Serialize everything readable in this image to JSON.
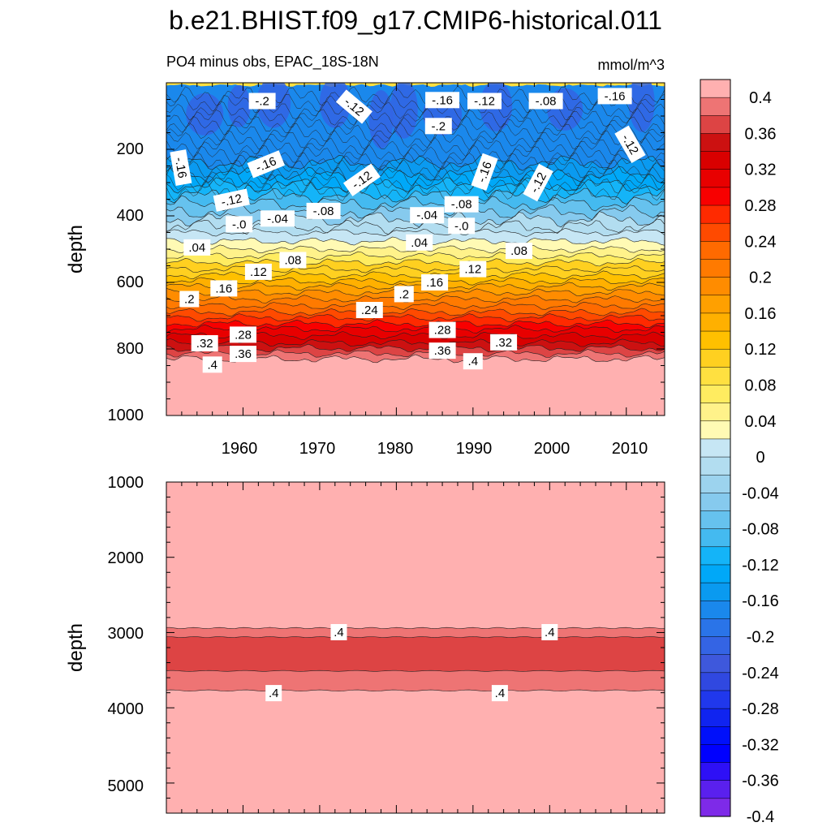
{
  "chart_data": {
    "type": "heatmap",
    "title": "b.e21.BHIST.f09_g17.CMIP6-historical.011",
    "subtitle": "PO4 minus obs, EPAC_18S-18N",
    "units": "mmol/m^3",
    "top_panel": {
      "ylabel": "depth",
      "ylim": [
        0,
        1000
      ],
      "xlim": [
        1950,
        2015
      ],
      "yticks": [
        200,
        400,
        600,
        800,
        1000
      ],
      "ytick_labels": [
        "200",
        "400",
        "600",
        "800",
        "1000"
      ],
      "xticks": [
        1960,
        1970,
        1980,
        1990,
        2000,
        2010
      ],
      "xtick_labels": [
        "1960",
        "1970",
        "1980",
        "1990",
        "2000",
        "2010"
      ],
      "contour_labels": [
        {
          "text": "-.2",
          "year": 1962.5,
          "depth": 55
        },
        {
          "text": "-.12",
          "year": 1974.5,
          "depth": 72
        },
        {
          "text": "-.16",
          "year": 1986.0,
          "depth": 52
        },
        {
          "text": "-.12",
          "year": 1991.5,
          "depth": 55
        },
        {
          "text": "-.08",
          "year": 1999.5,
          "depth": 55
        },
        {
          "text": "-.16",
          "year": 2008.5,
          "depth": 40
        },
        {
          "text": "-.2",
          "year": 1985.5,
          "depth": 130
        },
        {
          "text": "-.12",
          "year": 2010.5,
          "depth": 185
        },
        {
          "text": "-.16",
          "year": 1951.9,
          "depth": 255
        },
        {
          "text": "-.16",
          "year": 1963.0,
          "depth": 245
        },
        {
          "text": "-.12",
          "year": 1975.5,
          "depth": 292
        },
        {
          "text": "-.16",
          "year": 1991.5,
          "depth": 268
        },
        {
          "text": "-.12",
          "year": 1998.5,
          "depth": 300
        },
        {
          "text": "-.12",
          "year": 1958.5,
          "depth": 353
        },
        {
          "text": "-.0",
          "year": 1959.5,
          "depth": 425
        },
        {
          "text": "-.04",
          "year": 1964.5,
          "depth": 408
        },
        {
          "text": "-.08",
          "year": 1970.5,
          "depth": 385
        },
        {
          "text": "-.04",
          "year": 1984.0,
          "depth": 398
        },
        {
          "text": "-.08",
          "year": 1988.5,
          "depth": 365
        },
        {
          "text": "-.0",
          "year": 1988.5,
          "depth": 430
        },
        {
          "text": ".04",
          "year": 1954.0,
          "depth": 495
        },
        {
          "text": ".04",
          "year": 1983.0,
          "depth": 480
        },
        {
          "text": ".08",
          "year": 1966.5,
          "depth": 533
        },
        {
          "text": ".08",
          "year": 1996.0,
          "depth": 505
        },
        {
          "text": ".12",
          "year": 1962.0,
          "depth": 568
        },
        {
          "text": ".12",
          "year": 1990.0,
          "depth": 560
        },
        {
          "text": ".16",
          "year": 1957.5,
          "depth": 618
        },
        {
          "text": ".16",
          "year": 1985.0,
          "depth": 600
        },
        {
          "text": ".2",
          "year": 1953.0,
          "depth": 650
        },
        {
          "text": ".2",
          "year": 1981.0,
          "depth": 635
        },
        {
          "text": ".24",
          "year": 1976.5,
          "depth": 683
        },
        {
          "text": ".28",
          "year": 1960.0,
          "depth": 757
        },
        {
          "text": ".28",
          "year": 1986.0,
          "depth": 743
        },
        {
          "text": ".32",
          "year": 1955.0,
          "depth": 783
        },
        {
          "text": ".32",
          "year": 1994.0,
          "depth": 780
        },
        {
          "text": ".36",
          "year": 1960.0,
          "depth": 815
        },
        {
          "text": ".36",
          "year": 1986.0,
          "depth": 805
        },
        {
          "text": ".4",
          "year": 1956.0,
          "depth": 847
        },
        {
          "text": ".4",
          "year": 1990.0,
          "depth": 837
        }
      ]
    },
    "bottom_panel": {
      "ylabel": "depth",
      "ylim": [
        1000,
        5400
      ],
      "xlim": [
        1950,
        2015
      ],
      "yticks": [
        1000,
        2000,
        3000,
        4000,
        5000
      ],
      "ytick_labels": [
        "1000",
        "2000",
        "3000",
        "4000",
        "5000"
      ],
      "contour_labels": [
        {
          "text": ".4",
          "year": 1972.5,
          "depth": 2995
        },
        {
          "text": ".4",
          "year": 2000.0,
          "depth": 2995
        },
        {
          "text": ".4",
          "year": 1964.0,
          "depth": 3805
        },
        {
          "text": ".4",
          "year": 1993.5,
          "depth": 3805
        }
      ]
    },
    "colorbar": {
      "labels": [
        "0.4",
        "0.36",
        "0.32",
        "0.28",
        "0.24",
        "0.2",
        "0.16",
        "0.12",
        "0.08",
        "0.04",
        "0",
        "-0.04",
        "-0.08",
        "-0.12",
        "-0.16",
        "-0.2",
        "-0.24",
        "-0.28",
        "-0.32",
        "-0.36",
        "-0.4"
      ],
      "colors": [
        "#FFB0B0",
        "#EE7474",
        "#DD4444",
        "#CC1111",
        "#D90000",
        "#E80000",
        "#F80000",
        "#FF2A00",
        "#FF4A00",
        "#FF6A00",
        "#FF7A00",
        "#FF8C00",
        "#FFA000",
        "#FFB000",
        "#FFC000",
        "#FFD020",
        "#FFE040",
        "#FFEC60",
        "#FFF28A",
        "#FFFAB4",
        "#C6E6F4",
        "#B2DDF0",
        "#9CD3EE",
        "#86CAEE",
        "#66C2EE",
        "#44BAF0",
        "#14B4F8",
        "#00A8F8",
        "#0A9AF0",
        "#1A88EC",
        "#2A74E8",
        "#3464E4",
        "#3E58DC",
        "#3048E0",
        "#2038EC",
        "#1024F0",
        "#0010FA",
        "#0000FF",
        "#2E10F6",
        "#5A20EE",
        "#7E2AE8"
      ]
    }
  }
}
